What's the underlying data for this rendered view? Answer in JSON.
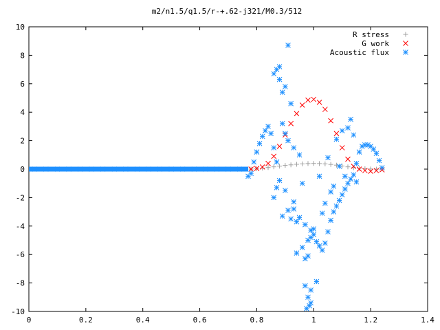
{
  "chart_data": {
    "type": "scatter",
    "title": "m2/n1.5/q1.5/r-+.62-j321/M0.3/512",
    "xlabel": "",
    "ylabel": "",
    "xlim": [
      0,
      1.4
    ],
    "ylim": [
      -10,
      10
    ],
    "xticks": [
      "0",
      "0.2",
      "0.4",
      "0.6",
      "0.8",
      "1",
      "1.2",
      "1.4"
    ],
    "yticks": [
      "10",
      "8",
      "6",
      "4",
      "2",
      "0",
      "-2",
      "-4",
      "-6",
      "-8",
      "-10"
    ],
    "xtick_values": [
      0,
      0.2,
      0.4,
      0.6,
      0.8,
      1.0,
      1.2,
      1.4
    ],
    "ytick_values": [
      10,
      8,
      6,
      4,
      2,
      0,
      -2,
      -4,
      -6,
      -8,
      -10
    ],
    "grid": false,
    "legend_position": "top-right",
    "series": [
      {
        "name": "R stress",
        "marker": "plus",
        "color": "#a0a0a0",
        "x": [
          0.78,
          0.8,
          0.82,
          0.84,
          0.86,
          0.88,
          0.9,
          0.92,
          0.94,
          0.96,
          0.98,
          1.0,
          1.02,
          1.04,
          1.06,
          1.08,
          1.1,
          1.12,
          1.14,
          1.16,
          1.18,
          1.2,
          1.22,
          1.24
        ],
        "y": [
          0.0,
          0.03,
          0.07,
          0.11,
          0.16,
          0.21,
          0.26,
          0.3,
          0.34,
          0.37,
          0.39,
          0.4,
          0.39,
          0.37,
          0.33,
          0.28,
          0.22,
          0.16,
          0.1,
          0.06,
          0.03,
          0.01,
          0.0,
          0.0
        ]
      },
      {
        "name": "G work",
        "marker": "cross",
        "color": "#ff0000",
        "x": [
          0.78,
          0.8,
          0.82,
          0.84,
          0.86,
          0.88,
          0.9,
          0.92,
          0.94,
          0.96,
          0.98,
          1.0,
          1.02,
          1.04,
          1.06,
          1.08,
          1.1,
          1.12,
          1.14,
          1.16,
          1.18,
          1.2,
          1.22,
          1.24
        ],
        "y": [
          0.0,
          0.05,
          0.15,
          0.4,
          0.9,
          1.6,
          2.4,
          3.2,
          3.9,
          4.5,
          4.85,
          4.9,
          4.7,
          4.2,
          3.4,
          2.5,
          1.5,
          0.7,
          0.2,
          0.0,
          -0.1,
          -0.15,
          -0.1,
          -0.05
        ]
      },
      {
        "name": "Acoustic flux",
        "marker": "star",
        "color": "#1e90ff",
        "x": [
          0.02,
          0.06,
          0.1,
          0.14,
          0.18,
          0.22,
          0.26,
          0.3,
          0.34,
          0.38,
          0.42,
          0.46,
          0.5,
          0.54,
          0.58,
          0.62,
          0.66,
          0.7,
          0.74,
          0.77,
          0.78,
          0.79,
          0.8,
          0.81,
          0.82,
          0.83,
          0.84,
          0.85,
          0.86,
          0.87,
          0.88,
          0.86,
          0.87,
          0.88,
          0.89,
          0.9,
          0.91,
          0.92,
          0.89,
          0.9,
          0.91,
          0.88,
          0.87,
          0.86,
          0.9,
          0.93,
          0.95,
          0.97,
          0.99,
          1.0,
          0.98,
          0.96,
          0.94,
          0.97,
          0.98,
          0.99,
          1.0,
          1.01,
          1.02,
          1.03,
          1.04,
          1.05,
          1.06,
          1.07,
          1.08,
          1.09,
          1.1,
          1.11,
          1.12,
          1.13,
          1.14,
          1.15,
          1.16,
          1.17,
          1.18,
          1.19,
          1.2,
          1.21,
          1.22,
          1.23,
          1.24,
          0.93,
          0.95,
          1.05,
          1.08,
          1.1,
          0.97,
          0.99,
          1.01,
          0.98,
          0.99,
          0.975,
          0.985,
          1.03,
          1.04,
          1.06,
          1.07,
          0.92,
          0.94,
          0.96,
          0.89,
          0.91,
          0.93,
          1.02,
          1.12,
          1.13,
          1.14,
          1.15,
          1.11,
          1.09
        ],
        "y": [
          0,
          0,
          0,
          0,
          0,
          0,
          0,
          0,
          0,
          0,
          0,
          0,
          0,
          0,
          0,
          0,
          0,
          0,
          0,
          -0.5,
          -0.3,
          0.5,
          1.2,
          1.8,
          2.3,
          2.7,
          3.0,
          2.5,
          1.5,
          0.5,
          7.2,
          6.7,
          7.0,
          6.3,
          5.4,
          5.8,
          8.7,
          4.6,
          3.2,
          2.5,
          2.0,
          -0.8,
          -1.3,
          -2.0,
          -1.5,
          -2.8,
          -3.4,
          -3.9,
          -4.3,
          -4.6,
          -5.0,
          -5.5,
          -5.9,
          -6.3,
          -6.1,
          -4.8,
          -4.2,
          -5.1,
          -5.4,
          -5.7,
          -5.2,
          -4.4,
          -3.6,
          -3.0,
          -2.6,
          -2.2,
          -1.8,
          -1.4,
          -1.0,
          -0.7,
          -0.4,
          0.4,
          1.2,
          1.6,
          1.7,
          1.7,
          1.6,
          1.4,
          1.1,
          0.6,
          0.1,
          1.5,
          1.0,
          0.8,
          2.1,
          2.7,
          -8.2,
          -8.5,
          -7.9,
          -9.0,
          -9.4,
          -9.8,
          -9.6,
          -3.1,
          -2.4,
          -1.6,
          -1.2,
          -3.5,
          -3.7,
          -1.0,
          -3.3,
          -2.9,
          -2.3,
          -0.5,
          2.9,
          3.5,
          2.4,
          -0.9,
          -0.5,
          0.2
        ]
      }
    ]
  }
}
